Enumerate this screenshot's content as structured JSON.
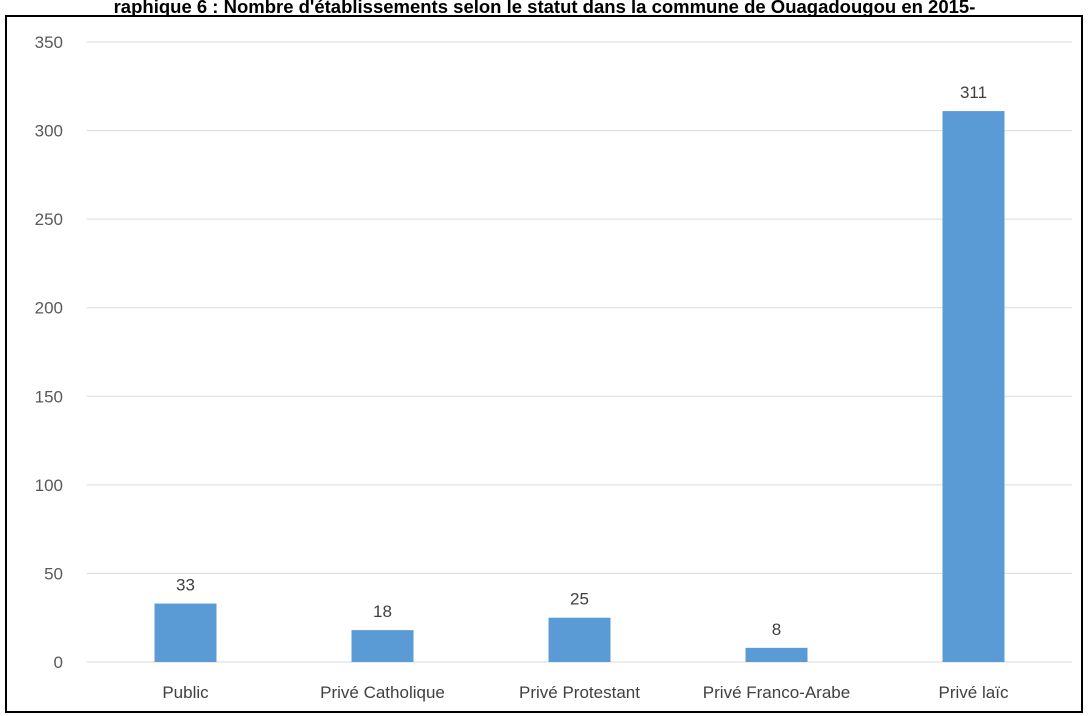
{
  "chart_data": {
    "type": "bar",
    "title": "raphique 6 : Nombre d'établissements selon le statut dans la commune de Ouagadougou en 2015-",
    "categories": [
      "Public",
      "Privé Catholique",
      "Privé Protestant",
      "Privé Franco-Arabe",
      "Privé laïc"
    ],
    "values": [
      33,
      18,
      25,
      8,
      311
    ],
    "ylim": [
      0,
      350
    ],
    "yticks": [
      0,
      50,
      100,
      150,
      200,
      250,
      300,
      350
    ],
    "grid": true,
    "legend": "none",
    "colors": {
      "bar": "#5b9bd5",
      "grid": "#d9d9d9"
    }
  }
}
